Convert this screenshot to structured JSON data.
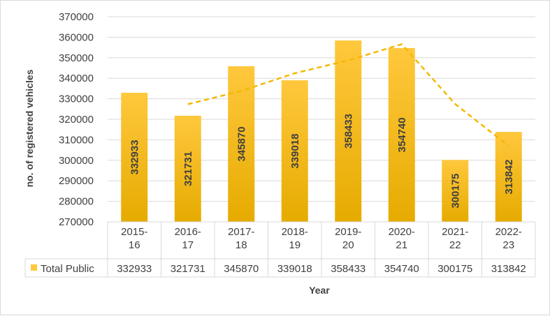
{
  "chart_data": {
    "type": "bar",
    "categories": [
      "2015-16",
      "2016-17",
      "2017-18",
      "2018-19",
      "2019-20",
      "2020-21",
      "2021-22",
      "2022-23"
    ],
    "category_lines": [
      [
        "2015-",
        "16"
      ],
      [
        "2016-",
        "17"
      ],
      [
        "2017-",
        "18"
      ],
      [
        "2018-",
        "19"
      ],
      [
        "2019-",
        "20"
      ],
      [
        "2020-",
        "21"
      ],
      [
        "2021-",
        "22"
      ],
      [
        "2022-",
        "23"
      ]
    ],
    "series": [
      {
        "name": "Total Public",
        "values": [
          332933,
          321731,
          345870,
          339018,
          358433,
          354740,
          300175,
          313842
        ]
      }
    ],
    "trendline": {
      "type": "moving-average",
      "period": 2,
      "style": "dashed"
    },
    "xlabel": "Year",
    "ylabel": "no. of registered vehicles",
    "ylim": [
      270000,
      370000
    ],
    "ytick_step": 10000,
    "yticks": [
      "270000",
      "280000",
      "290000",
      "300000",
      "310000",
      "320000",
      "330000",
      "340000",
      "350000",
      "360000",
      "370000"
    ],
    "grid": true,
    "legend": "data-table",
    "data_labels": "inside-rotated",
    "colors": {
      "bar_top": "#ffc83d",
      "bar_bottom": "#e6ab00",
      "trend": "#f5b800",
      "grid": "#d9d9d9",
      "text": "#404040"
    }
  }
}
